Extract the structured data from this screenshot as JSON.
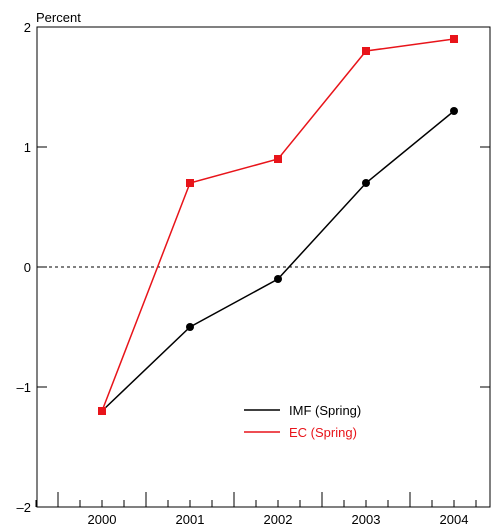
{
  "chart_data": {
    "type": "line",
    "title": "",
    "xlabel": "",
    "ylabel": "Percent",
    "categories": [
      "2000",
      "2001",
      "2002",
      "2003",
      "2004"
    ],
    "ylim": [
      -2,
      2
    ],
    "yticks": [
      -2,
      -1,
      0,
      1,
      2
    ],
    "ytick_labels": [
      "–2",
      "–1",
      "0",
      "1",
      "2"
    ],
    "zero_line": "dashed",
    "grid": false,
    "legend_position": "lower-right",
    "series": [
      {
        "name": "IMF (Spring)",
        "color": "#000000",
        "marker": "circle",
        "values": [
          -1.2,
          -0.5,
          -0.1,
          0.7,
          1.3
        ]
      },
      {
        "name": "EC (Spring)",
        "color": "#e8141a",
        "marker": "square",
        "values": [
          -1.2,
          0.7,
          0.9,
          1.8,
          1.9
        ]
      }
    ]
  }
}
